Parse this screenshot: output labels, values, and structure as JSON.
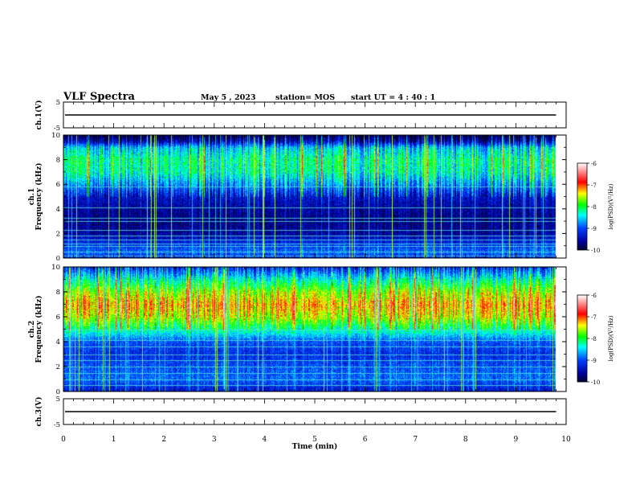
{
  "header": {
    "title": "VLF Spectra",
    "date": "May 5  , 2023",
    "station": "station= MOS",
    "start_ut": "start  UT  =   4 : 40 : 1"
  },
  "chart_data": {
    "type": "heatmap",
    "xlabel": "Time  (min)",
    "x_ticks": [
      "0",
      "1",
      "2",
      "3",
      "4",
      "5",
      "6",
      "7",
      "8",
      "9",
      "10"
    ],
    "xlim": [
      0,
      10
    ],
    "panels": [
      {
        "id": "ch1-voltage",
        "type": "line",
        "ylabel": "ch.1(V)",
        "ylim": [
          -5,
          5
        ],
        "y_ticks": [
          "5",
          "-5"
        ],
        "trace_level": 0,
        "trace_end_min": 9.8
      },
      {
        "id": "ch1-spectrogram",
        "type": "heatmap",
        "ylabel": "ch.1\nFrequency  (kHz)",
        "ylim": [
          0,
          10
        ],
        "y_ticks": [
          "0",
          "2",
          "4",
          "6",
          "8",
          "10"
        ],
        "data_end_min": 9.8,
        "colorbar": {
          "label": "log(PSD)(V²/Hz)",
          "range": [
            -10,
            -6
          ],
          "ticks": [
            "-6",
            "-7",
            "-8",
            "-9",
            "-10"
          ]
        },
        "band_profile": [
          {
            "f_khz": 0.0,
            "level": -9.3
          },
          {
            "f_khz": 0.5,
            "level": -8.9
          },
          {
            "f_khz": 1.0,
            "level": -9.1
          },
          {
            "f_khz": 2.0,
            "level": -9.6
          },
          {
            "f_khz": 3.0,
            "level": -9.7
          },
          {
            "f_khz": 4.0,
            "level": -9.6
          },
          {
            "f_khz": 5.0,
            "level": -9.4
          },
          {
            "f_khz": 6.0,
            "level": -8.8
          },
          {
            "f_khz": 7.0,
            "level": -8.3
          },
          {
            "f_khz": 8.0,
            "level": -8.2
          },
          {
            "f_khz": 9.0,
            "level": -8.6
          },
          {
            "f_khz": 9.5,
            "level": -9.5
          },
          {
            "f_khz": 10.0,
            "level": -10
          }
        ],
        "tones_khz": [
          0.2,
          0.5,
          1.0,
          1.2,
          1.5,
          1.8,
          2.3,
          3.0,
          3.3,
          4.1,
          5.8
        ],
        "gap_start_min": 9.8
      },
      {
        "id": "ch2-spectrogram",
        "type": "heatmap",
        "ylabel": "ch.2\nFrequency  (kHz)",
        "ylim": [
          0,
          10
        ],
        "y_ticks": [
          "0",
          "2",
          "4",
          "6",
          "8",
          "10"
        ],
        "data_end_min": 9.8,
        "colorbar": {
          "label": "log(PSD)(V²/Hz)",
          "range": [
            -10,
            -6
          ],
          "ticks": [
            "-6",
            "-7",
            "-8",
            "-9",
            "-10"
          ]
        },
        "band_profile": [
          {
            "f_khz": 0.0,
            "level": -9.4
          },
          {
            "f_khz": 1.0,
            "level": -8.9
          },
          {
            "f_khz": 2.0,
            "level": -9.0
          },
          {
            "f_khz": 3.0,
            "level": -9.2
          },
          {
            "f_khz": 4.0,
            "level": -9.0
          },
          {
            "f_khz": 5.0,
            "level": -8.2
          },
          {
            "f_khz": 6.0,
            "level": -7.5
          },
          {
            "f_khz": 7.0,
            "level": -7.2
          },
          {
            "f_khz": 8.0,
            "level": -7.6
          },
          {
            "f_khz": 9.0,
            "level": -8.3
          },
          {
            "f_khz": 10.0,
            "level": -9.2
          }
        ],
        "tones_khz": [
          0.5,
          1.0,
          1.5,
          2.0,
          2.5,
          3.0,
          3.6,
          4.1,
          5.0
        ],
        "gap_start_min": 9.8
      },
      {
        "id": "ch3-voltage",
        "type": "line",
        "ylabel": "ch.3(V)",
        "ylim": [
          -5,
          5
        ],
        "y_ticks": [
          "5",
          "-5"
        ],
        "trace_level": 0,
        "trace_end_min": 9.8
      }
    ]
  },
  "colors": {
    "axis": "#000000",
    "background": "#ffffff",
    "colormap": [
      "#000000",
      "#00008b",
      "#0000ff",
      "#00ffff",
      "#00ff00",
      "#ffff00",
      "#ff0000",
      "#ffffff"
    ]
  }
}
